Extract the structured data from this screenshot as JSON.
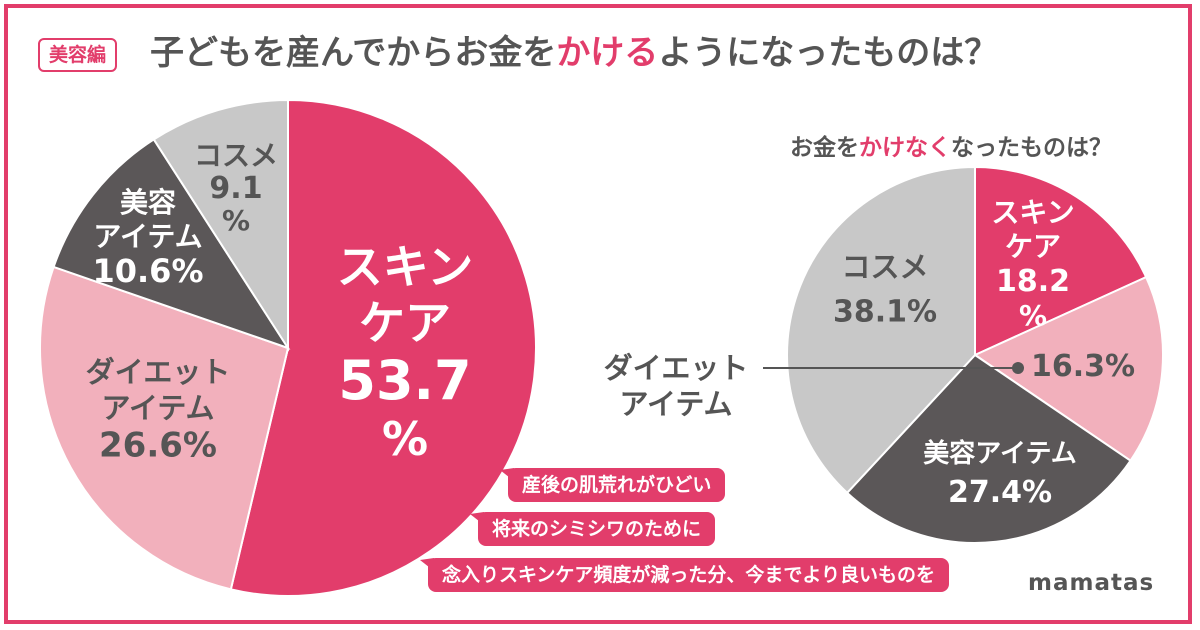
{
  "badge": "美容編",
  "title": {
    "part1": "子どもを産んでから",
    "part2": "お金を",
    "highlight": "かける",
    "part3": "ようになったものは？"
  },
  "subtitle": {
    "part1": "お金を",
    "highlight": "かけなく",
    "part2": "なったものは？"
  },
  "colors": {
    "pink": "#e23d6b",
    "light_pink": "#f2b0bc",
    "dark_gray": "#5b5758",
    "light_gray": "#c8c8c8",
    "text_gray": "#555555"
  },
  "chart_data": [
    {
      "type": "pie",
      "slices": [
        {
          "label_lines": [
            "スキン",
            "ケア"
          ],
          "value_text": "53.7",
          "pct_text": "%",
          "value": 53.7,
          "color": "#e23d6b"
        },
        {
          "label_lines": [
            "ダイエット",
            "アイテム"
          ],
          "value_text": "26.6%",
          "value": 26.6,
          "color": "#f2b0bc"
        },
        {
          "label_lines": [
            "美容",
            "アイテム"
          ],
          "value_text": "10.6%",
          "value": 10.6,
          "color": "#5b5758"
        },
        {
          "label_lines": [
            "コスメ"
          ],
          "value_text": "9.1",
          "pct_text": "%",
          "value": 9.1,
          "color": "#c8c8c8"
        }
      ],
      "reasons": [
        "産後の肌荒れがひどい",
        "将来のシミシワのために",
        "念入りスキンケア頻度が減った分、今までより良いものを"
      ]
    },
    {
      "type": "pie",
      "slices": [
        {
          "label_lines": [
            "スキン",
            "ケア"
          ],
          "value_text": "18.2",
          "pct_text": "%",
          "value": 18.2,
          "color": "#e23d6b"
        },
        {
          "label_lines": [
            "ダイエット",
            "アイテム"
          ],
          "value_text": "16.3%",
          "value": 16.3,
          "color": "#f2b0bc"
        },
        {
          "label_lines": [
            "美容アイテム"
          ],
          "value_text": "27.4%",
          "value": 27.4,
          "color": "#5b5758"
        },
        {
          "label_lines": [
            "コスメ"
          ],
          "value_text": "38.1%",
          "value": 38.1,
          "color": "#c8c8c8"
        }
      ]
    }
  ],
  "logo": "mamatas"
}
